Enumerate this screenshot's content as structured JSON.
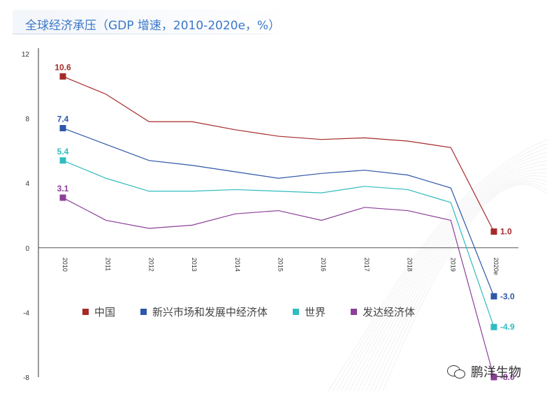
{
  "title": "全球经济承压（GDP 增速，2010-2020e，%）",
  "legend": [
    {
      "label": "中国",
      "color": "#a52a2a"
    },
    {
      "label": "新兴市场和发展中经济体",
      "color": "#2e57a8"
    },
    {
      "label": "世界",
      "color": "#2ebcc0"
    },
    {
      "label": "发达经济体",
      "color": "#8b3f98"
    }
  ],
  "watermark": "鹏洋生物",
  "chart_data": {
    "type": "line",
    "categories": [
      "2010",
      "2011",
      "2012",
      "2013",
      "2014",
      "2015",
      "2016",
      "2017",
      "2018",
      "2019",
      "2020e"
    ],
    "ylim": [
      -8,
      12
    ],
    "yticks": [
      "12",
      "8",
      "4",
      "0",
      "-4",
      "-8"
    ],
    "series": [
      {
        "name": "中国",
        "color": "#a52a2a",
        "values": [
          10.6,
          9.5,
          7.8,
          7.8,
          7.3,
          6.9,
          6.7,
          6.8,
          6.6,
          6.2,
          1.0
        ],
        "labels": {
          "0": "10.6",
          "10": "1.0"
        }
      },
      {
        "name": "新兴市场和发展中经济体",
        "color": "#2e57a8",
        "values": [
          7.4,
          6.4,
          5.4,
          5.1,
          4.7,
          4.3,
          4.6,
          4.8,
          4.5,
          3.7,
          -3.0
        ],
        "labels": {
          "0": "7.4",
          "10": "-3.0"
        }
      },
      {
        "name": "世界",
        "color": "#2ebcc0",
        "values": [
          5.4,
          4.3,
          3.5,
          3.5,
          3.6,
          3.5,
          3.4,
          3.8,
          3.6,
          2.8,
          -4.9
        ],
        "labels": {
          "0": "5.4",
          "10": "-4.9"
        }
      },
      {
        "name": "发达经济体",
        "color": "#8b3f98",
        "values": [
          3.1,
          1.7,
          1.2,
          1.4,
          2.1,
          2.3,
          1.7,
          2.5,
          2.3,
          1.7,
          -8.0
        ],
        "labels": {
          "0": "3.1",
          "10": "-8.0"
        }
      }
    ]
  }
}
